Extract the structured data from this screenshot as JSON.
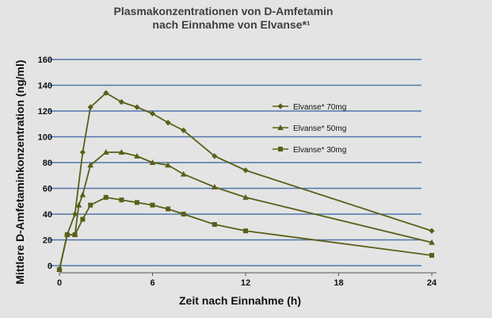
{
  "chart_data": {
    "type": "line",
    "title_line1": "Plasmakonzentrationen von D-Amfetamin",
    "title_line2": "nach Einnahme von Elvanse*¹",
    "xlabel": "Zeit nach Einnahme (h)",
    "ylabel": "Mittlere D-Amfetaminkonzentration (ng/ml)",
    "xlim": [
      0,
      24
    ],
    "ylim": [
      0,
      160
    ],
    "x_ticks": [
      0,
      6,
      12,
      18,
      24
    ],
    "y_ticks": [
      0,
      20,
      40,
      60,
      80,
      100,
      120,
      140,
      160
    ],
    "grid": "horizontal",
    "legend_position": "right",
    "line_color": "#5a5f18",
    "grid_color": "#4f76ad",
    "series": [
      {
        "name": "Elvanse* 70mg",
        "marker": "diamond",
        "points": [
          [
            0,
            -3
          ],
          [
            0.5,
            24
          ],
          [
            1,
            40
          ],
          [
            1.5,
            88
          ],
          [
            2,
            123
          ],
          [
            3,
            134
          ],
          [
            4,
            127
          ],
          [
            5,
            123
          ],
          [
            6,
            118
          ],
          [
            7,
            111
          ],
          [
            8,
            105
          ],
          [
            10,
            85
          ],
          [
            12,
            74
          ],
          [
            24,
            27
          ]
        ]
      },
      {
        "name": "Elvanse* 50mg",
        "marker": "triangle",
        "points": [
          [
            0,
            -3
          ],
          [
            0.5,
            24
          ],
          [
            1,
            24
          ],
          [
            1.25,
            47
          ],
          [
            1.5,
            55
          ],
          [
            2,
            78
          ],
          [
            3,
            88
          ],
          [
            4,
            88
          ],
          [
            5,
            85
          ],
          [
            6,
            80
          ],
          [
            7,
            78
          ],
          [
            8,
            71
          ],
          [
            10,
            61
          ],
          [
            12,
            53
          ],
          [
            24,
            18
          ]
        ]
      },
      {
        "name": "Elvanse* 30mg",
        "marker": "square",
        "points": [
          [
            0,
            -3
          ],
          [
            0.5,
            24
          ],
          [
            1,
            24
          ],
          [
            1.5,
            36
          ],
          [
            2,
            47
          ],
          [
            3,
            53
          ],
          [
            4,
            51
          ],
          [
            5,
            49
          ],
          [
            6,
            47
          ],
          [
            7,
            44
          ],
          [
            8,
            40
          ],
          [
            10,
            32
          ],
          [
            12,
            27
          ],
          [
            24,
            8
          ]
        ]
      }
    ]
  }
}
